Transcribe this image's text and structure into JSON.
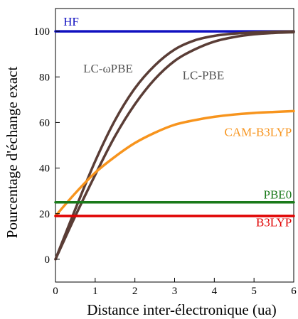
{
  "chart_data": {
    "type": "line",
    "title": "",
    "xlabel": "Distance inter-électronique (ua)",
    "ylabel": "Pourcentage d'échange exact",
    "xlim": [
      0,
      6
    ],
    "ylim": [
      -10,
      110
    ],
    "xticks": [
      0,
      1,
      2,
      3,
      4,
      5,
      6
    ],
    "yticks": [
      0,
      20,
      40,
      60,
      80,
      100
    ],
    "grid": false,
    "legend": "inline labels",
    "series": [
      {
        "name": "HF",
        "color": "#1010c0",
        "x": [
          0,
          6
        ],
        "y": [
          100,
          100
        ]
      },
      {
        "name": "LC-ωPBE",
        "color": "#5a3d36",
        "x": [
          0,
          0.5,
          1,
          1.5,
          2,
          2.5,
          3,
          3.5,
          4,
          4.5,
          5,
          5.5,
          6
        ],
        "y": [
          0,
          22,
          43,
          61,
          75,
          85,
          92,
          96,
          98,
          99,
          99.5,
          99.8,
          100
        ]
      },
      {
        "name": "LC-PBE",
        "color": "#5a3d36",
        "x": [
          0,
          0.5,
          1,
          1.5,
          2,
          2.5,
          3,
          3.5,
          4,
          4.5,
          5,
          5.5,
          6
        ],
        "y": [
          0,
          19,
          37,
          54,
          68,
          79,
          87,
          92,
          95.5,
          97.5,
          98.7,
          99.3,
          99.6
        ]
      },
      {
        "name": "CAM-B3LYP",
        "color": "#f7941d",
        "x": [
          0,
          0.5,
          1,
          1.5,
          2,
          2.5,
          3,
          3.5,
          4,
          4.5,
          5,
          5.5,
          6
        ],
        "y": [
          19,
          29,
          38,
          45,
          51,
          55.5,
          59,
          61,
          62.5,
          63.5,
          64.2,
          64.6,
          65
        ]
      },
      {
        "name": "PBE0",
        "color": "#1a7a1a",
        "x": [
          0,
          6
        ],
        "y": [
          25,
          25
        ]
      },
      {
        "name": "B3LYP",
        "color": "#e00000",
        "x": [
          0,
          6
        ],
        "y": [
          19,
          19
        ]
      }
    ]
  }
}
